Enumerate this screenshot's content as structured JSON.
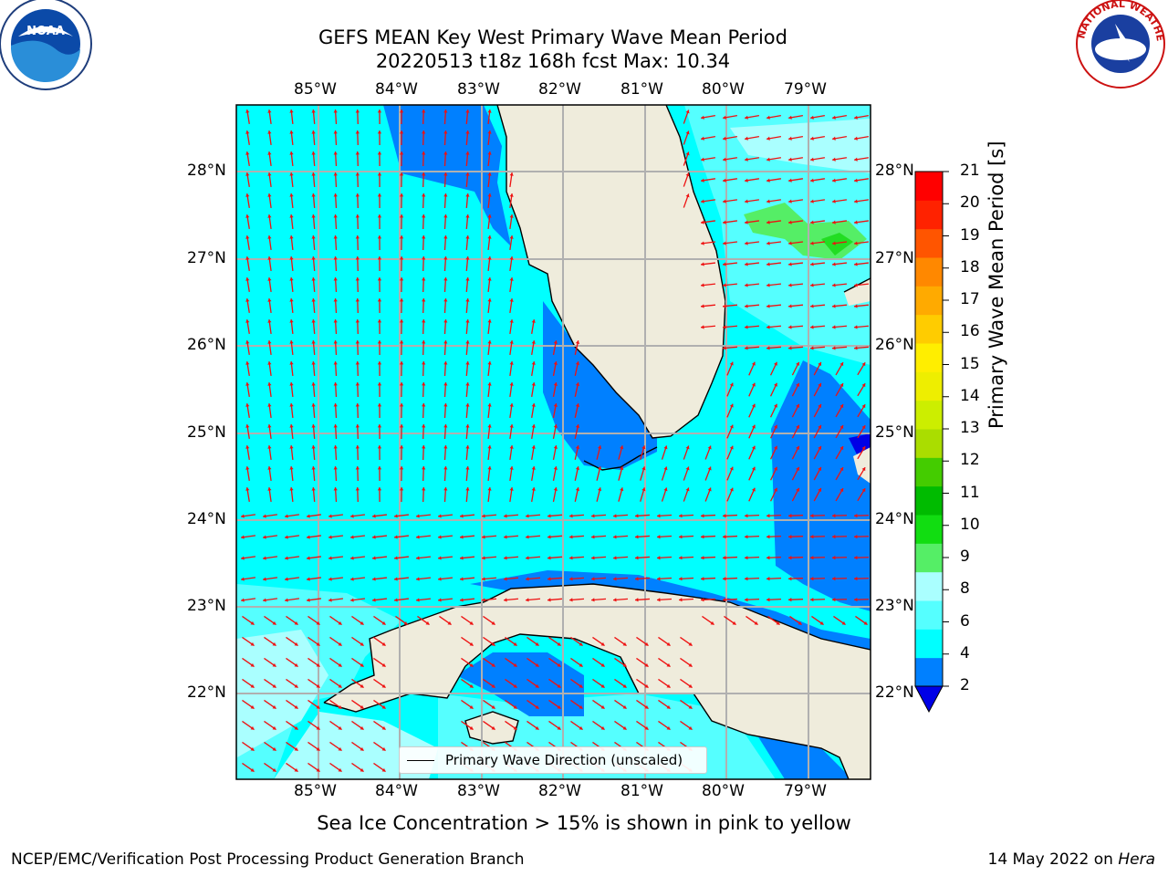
{
  "title": {
    "line1": "GEFS MEAN Key West Primary Wave Mean Period",
    "line2": "20220513 t18z 168h fcst   Max: 10.34"
  },
  "map": {
    "lon_labels": [
      "85°W",
      "84°W",
      "83°W",
      "82°W",
      "81°W",
      "80°W",
      "79°W"
    ],
    "lat_labels": [
      "28°N",
      "27°N",
      "26°N",
      "25°N",
      "24°N",
      "23°N",
      "22°N"
    ],
    "legend_label": "Primary Wave Direction (unscaled)",
    "colors": {
      "ocean_4_6": "#00ffff",
      "ocean_6_8": "#55ffff",
      "ocean_8_9": "#aaffff",
      "ocean_2_4": "#0080ff",
      "ocean_lt2": "#0000e6",
      "green_9_10": "#55ee66",
      "green_10_11": "#22dd22",
      "land": "#efecdc",
      "arrow": "#ee1111",
      "grid": "#b0b0b0"
    }
  },
  "colorbar": {
    "label": "Primary Wave Mean Period [s]",
    "ticks": [
      "2",
      "4",
      "6",
      "8",
      "9",
      "10",
      "11",
      "12",
      "13",
      "14",
      "15",
      "16",
      "17",
      "18",
      "19",
      "20",
      "21"
    ],
    "colors": [
      "#0080ff",
      "#00ffff",
      "#55ffff",
      "#aaffff",
      "#55ee66",
      "#11dd11",
      "#00bb00",
      "#44cc00",
      "#aadd00",
      "#ccee00",
      "#eeee00",
      "#ffee00",
      "#ffcc00",
      "#ffaa00",
      "#ff8800",
      "#ff5500",
      "#ff2200",
      "#ff0000"
    ]
  },
  "subtitle": "Sea Ice Concentration > 15% is shown in pink to yellow",
  "footer": {
    "left": "NCEP/EMC/Verification Post Processing Product Generation Branch",
    "right_date": "14 May 2022 on",
    "right_host": "Hera"
  },
  "logos": {
    "left": "NOAA",
    "right_text": "NATIONAL WEATHER SERVICE"
  }
}
